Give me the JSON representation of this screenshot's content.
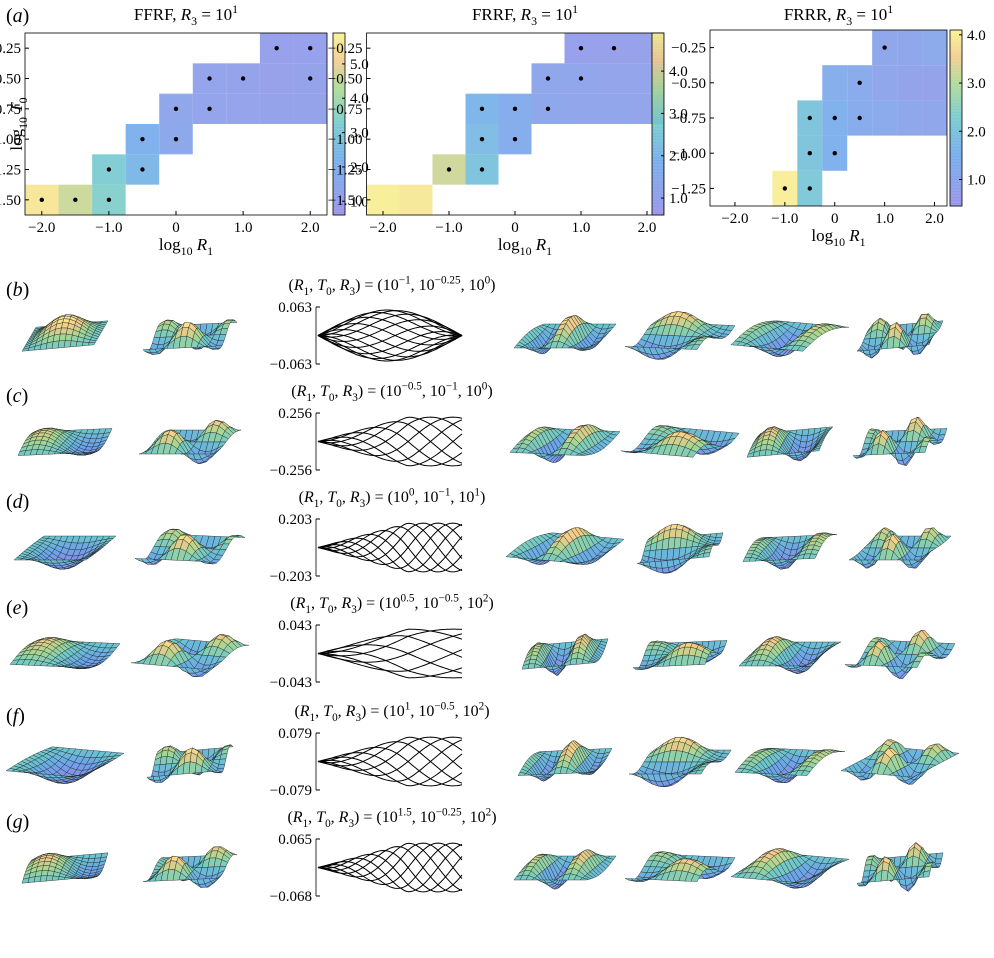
{
  "panel_a": {
    "label": [
      [
        "(",
        "n"
      ],
      [
        "a",
        "i"
      ],
      [
        ")",
        "n"
      ]
    ],
    "charts": [
      {
        "type": "heatmap",
        "title": [
          [
            "FFRF, ",
            "n"
          ],
          [
            "R",
            "i"
          ],
          [
            "3",
            "sub"
          ],
          [
            " = 10",
            "n"
          ],
          [
            "1",
            "sup"
          ]
        ],
        "xlabel": [
          [
            "log",
            "n"
          ],
          [
            "10",
            "sub"
          ],
          [
            " ",
            "n"
          ],
          [
            "R",
            "i"
          ],
          [
            "1",
            "sub"
          ]
        ],
        "ylabel": [
          [
            "log",
            "n"
          ],
          [
            "10",
            "sub"
          ],
          [
            " ",
            "n"
          ],
          [
            "T",
            "i"
          ],
          [
            "0",
            "sub"
          ]
        ],
        "xlim": [
          -2.25,
          2.25
        ],
        "ylim": [
          -1.625,
          -0.125
        ],
        "xticks": [
          {
            "value": -2,
            "label": "−2.0"
          },
          {
            "value": -1,
            "label": "−1.0"
          },
          0,
          {
            "value": 1,
            "label": "1.0"
          },
          {
            "value": 2,
            "label": "2.0"
          }
        ],
        "yticks": [
          {
            "value": -1.5,
            "label": "−1.50"
          },
          {
            "value": -1.25,
            "label": "−1.25"
          },
          {
            "value": -1,
            "label": "−1.00"
          },
          {
            "value": -0.75,
            "label": "−0.75"
          },
          {
            "value": -0.5,
            "label": "−0.50"
          },
          {
            "value": -0.25,
            "label": "−0.25"
          }
        ],
        "clim": [
          0.6,
          5.9
        ],
        "cticks": [
          {
            "value": 1,
            "label": "1.0"
          },
          {
            "value": 2,
            "label": "2.0"
          },
          {
            "value": 3,
            "label": "3.0"
          },
          {
            "value": 4,
            "label": "4.0"
          },
          {
            "value": 5,
            "label": "5.0"
          }
        ],
        "cells": {
          "x": [
            -2,
            -1.5,
            -1,
            -1,
            -0.5,
            -0.5,
            0,
            0,
            0.5,
            1,
            1.5,
            2,
            0.5,
            1,
            1.5,
            2,
            1.5,
            2
          ],
          "y": [
            -1.5,
            -1.5,
            -1.5,
            -1.25,
            -1.25,
            -1,
            -1,
            -0.75,
            -0.75,
            -0.75,
            -0.75,
            -0.75,
            -0.5,
            -0.5,
            -0.5,
            -0.5,
            -0.25,
            -0.25
          ],
          "values": [
            5.6,
            4.6,
            3.4,
            3.2,
            2.4,
            2.1,
            1.5,
            1.4,
            1.2,
            1.15,
            1.1,
            1.1,
            1.2,
            1.1,
            1.05,
            1.1,
            1.0,
            1.0
          ],
          "marked": [
            true,
            true,
            true,
            true,
            true,
            true,
            true,
            true,
            true,
            false,
            false,
            false,
            true,
            true,
            false,
            true,
            true,
            true
          ]
        }
      },
      {
        "type": "heatmap",
        "title": [
          [
            "FRRF, ",
            "n"
          ],
          [
            "R",
            "i"
          ],
          [
            "3",
            "sub"
          ],
          [
            " = 10",
            "n"
          ],
          [
            "1",
            "sup"
          ]
        ],
        "xlabel": [
          [
            "log",
            "n"
          ],
          [
            "10",
            "sub"
          ],
          [
            " ",
            "n"
          ],
          [
            "R",
            "i"
          ],
          [
            "1",
            "sub"
          ]
        ],
        "xlim": [
          -2.25,
          2.25
        ],
        "ylim": [
          -1.625,
          -0.125
        ],
        "xticks": [
          {
            "value": -2,
            "label": "−2.0"
          },
          {
            "value": -1,
            "label": "−1.0"
          },
          0,
          {
            "value": 1,
            "label": "1.0"
          },
          {
            "value": 2,
            "label": "2.0"
          }
        ],
        "yticks": [
          {
            "value": -1.5,
            "label": "−1.50"
          },
          {
            "value": -1.25,
            "label": "−1.25"
          },
          {
            "value": -1,
            "label": "−1.00"
          },
          {
            "value": -0.75,
            "label": "−0.75"
          },
          {
            "value": -0.5,
            "label": "−0.50"
          },
          {
            "value": -0.25,
            "label": "−0.25"
          }
        ],
        "clim": [
          0.6,
          4.9
        ],
        "cticks": [
          {
            "value": 1,
            "label": "1.0"
          },
          {
            "value": 2,
            "label": "2.0"
          },
          {
            "value": 3,
            "label": "3.0"
          },
          {
            "value": 4,
            "label": "4.0"
          }
        ],
        "cells": {
          "x": [
            -2,
            -1.5,
            -1,
            -0.5,
            -0.5,
            0,
            -0.5,
            0,
            0.5,
            1,
            1.5,
            2,
            0.5,
            1,
            1.5,
            2,
            1,
            1.5,
            2
          ],
          "y": [
            -1.5,
            -1.5,
            -1.25,
            -1.25,
            -1,
            -1,
            -0.75,
            -0.75,
            -0.75,
            -0.75,
            -0.75,
            -0.75,
            -0.5,
            -0.5,
            -0.5,
            -0.5,
            -0.25,
            -0.25,
            -0.25
          ],
          "values": [
            4.8,
            4.7,
            3.9,
            2.4,
            2.2,
            1.6,
            2.0,
            1.6,
            1.3,
            1.2,
            1.15,
            1.1,
            1.25,
            1.15,
            1.1,
            1.1,
            0.9,
            0.95,
            1.0
          ],
          "marked": [
            false,
            false,
            true,
            true,
            true,
            true,
            true,
            true,
            true,
            false,
            false,
            false,
            true,
            true,
            false,
            false,
            true,
            true,
            false
          ]
        }
      },
      {
        "type": "heatmap",
        "title": [
          [
            "FRRR, ",
            "n"
          ],
          [
            "R",
            "i"
          ],
          [
            "3",
            "sub"
          ],
          [
            " = 10",
            "n"
          ],
          [
            "1",
            "sup"
          ]
        ],
        "xlabel": [
          [
            "log",
            "n"
          ],
          [
            "10",
            "sub"
          ],
          [
            " ",
            "n"
          ],
          [
            "R",
            "i"
          ],
          [
            "1",
            "sub"
          ]
        ],
        "xlim": [
          -2.5,
          2.25
        ],
        "ylim": [
          -1.375,
          -0.125
        ],
        "xticks": [
          {
            "value": -2,
            "label": "−2.0"
          },
          {
            "value": -1,
            "label": "−1.0"
          },
          0,
          {
            "value": 1,
            "label": "1.0"
          },
          {
            "value": 2,
            "label": "2.0"
          }
        ],
        "yticks": [
          {
            "value": -1.25,
            "label": "−1.25"
          },
          {
            "value": -1,
            "label": "−1.00"
          },
          {
            "value": -0.75,
            "label": "−0.75"
          },
          {
            "value": -0.5,
            "label": "−0.50"
          },
          {
            "value": -0.25,
            "label": "−0.25"
          }
        ],
        "clim": [
          0.45,
          4.1
        ],
        "cticks": [
          {
            "value": 1,
            "label": "1.0"
          },
          {
            "value": 2,
            "label": "2.0"
          },
          {
            "value": 3,
            "label": "3.0"
          },
          {
            "value": 4,
            "label": "4.0"
          }
        ],
        "cells": {
          "x": [
            -1,
            -0.5,
            -0.5,
            0,
            -0.5,
            0,
            0.5,
            1,
            1.5,
            2,
            0,
            0.5,
            1,
            1.5,
            2,
            1,
            1.5,
            2
          ],
          "y": [
            -1.25,
            -1.25,
            -1,
            -1,
            -0.75,
            -0.75,
            -0.75,
            -0.75,
            -0.75,
            -0.75,
            -0.5,
            -0.5,
            -0.5,
            -0.5,
            -0.5,
            -0.25,
            -0.25,
            -0.25
          ],
          "values": [
            4.0,
            2.1,
            2.0,
            1.5,
            2.0,
            1.5,
            1.25,
            1.15,
            1.05,
            1.0,
            1.35,
            1.2,
            1.0,
            0.85,
            0.8,
            1.0,
            1.05,
            1.1
          ],
          "marked": [
            true,
            true,
            true,
            true,
            true,
            true,
            true,
            false,
            false,
            false,
            false,
            true,
            false,
            false,
            false,
            true,
            false,
            false
          ]
        }
      }
    ]
  },
  "rows": [
    {
      "label": [
        [
          "(",
          "n"
        ],
        [
          "b",
          "i"
        ],
        [
          ")",
          "n"
        ]
      ],
      "title": [
        [
          "(",
          "n"
        ],
        [
          "R",
          "i"
        ],
        [
          "1",
          "sub"
        ],
        [
          ", ",
          "n"
        ],
        [
          "T",
          "i"
        ],
        [
          "0",
          "sub"
        ],
        [
          ", ",
          "n"
        ],
        [
          "R",
          "i"
        ],
        [
          "3",
          "sub"
        ],
        [
          ") = (10",
          "n"
        ],
        [
          "−1",
          "sup"
        ],
        [
          ", 10",
          "n"
        ],
        [
          "−0.25",
          "sup"
        ],
        [
          ", 10",
          "n"
        ],
        [
          "0",
          "sup"
        ],
        [
          ")",
          "n"
        ]
      ],
      "ylim": [
        -0.063,
        0.063
      ],
      "yticks": [
        0.063,
        {
          "value": -0.063,
          "label": "−0.063"
        }
      ]
    },
    {
      "label": [
        [
          "(",
          "n"
        ],
        [
          "c",
          "i"
        ],
        [
          ")",
          "n"
        ]
      ],
      "title": [
        [
          "(",
          "n"
        ],
        [
          "R",
          "i"
        ],
        [
          "1",
          "sub"
        ],
        [
          ", ",
          "n"
        ],
        [
          "T",
          "i"
        ],
        [
          "0",
          "sub"
        ],
        [
          ", ",
          "n"
        ],
        [
          "R",
          "i"
        ],
        [
          "3",
          "sub"
        ],
        [
          ") = (10",
          "n"
        ],
        [
          "−0.5",
          "sup"
        ],
        [
          ", 10",
          "n"
        ],
        [
          "−1",
          "sup"
        ],
        [
          ", 10",
          "n"
        ],
        [
          "0",
          "sup"
        ],
        [
          ")",
          "n"
        ]
      ],
      "ylim": [
        -0.256,
        0.256
      ],
      "yticks": [
        0.256,
        {
          "value": -0.256,
          "label": "−0.256"
        }
      ]
    },
    {
      "label": [
        [
          "(",
          "n"
        ],
        [
          "d",
          "i"
        ],
        [
          ")",
          "n"
        ]
      ],
      "title": [
        [
          "(",
          "n"
        ],
        [
          "R",
          "i"
        ],
        [
          "1",
          "sub"
        ],
        [
          ", ",
          "n"
        ],
        [
          "T",
          "i"
        ],
        [
          "0",
          "sub"
        ],
        [
          ", ",
          "n"
        ],
        [
          "R",
          "i"
        ],
        [
          "3",
          "sub"
        ],
        [
          ") = (10",
          "n"
        ],
        [
          "0",
          "sup"
        ],
        [
          ", 10",
          "n"
        ],
        [
          "−1",
          "sup"
        ],
        [
          ", 10",
          "n"
        ],
        [
          "1",
          "sup"
        ],
        [
          ")",
          "n"
        ]
      ],
      "ylim": [
        -0.203,
        0.203
      ],
      "yticks": [
        0.203,
        {
          "value": -0.203,
          "label": "−0.203"
        }
      ]
    },
    {
      "label": [
        [
          "(",
          "n"
        ],
        [
          "e",
          "i"
        ],
        [
          ")",
          "n"
        ]
      ],
      "title": [
        [
          "(",
          "n"
        ],
        [
          "R",
          "i"
        ],
        [
          "1",
          "sub"
        ],
        [
          ", ",
          "n"
        ],
        [
          "T",
          "i"
        ],
        [
          "0",
          "sub"
        ],
        [
          ", ",
          "n"
        ],
        [
          "R",
          "i"
        ],
        [
          "3",
          "sub"
        ],
        [
          ") = (10",
          "n"
        ],
        [
          "0.5",
          "sup"
        ],
        [
          ", 10",
          "n"
        ],
        [
          "−0.5",
          "sup"
        ],
        [
          ", 10",
          "n"
        ],
        [
          "2",
          "sup"
        ],
        [
          ")",
          "n"
        ]
      ],
      "ylim": [
        -0.043,
        0.043
      ],
      "yticks": [
        0.043,
        {
          "value": -0.043,
          "label": "−0.043"
        }
      ]
    },
    {
      "label": [
        [
          "(",
          "n"
        ],
        [
          "f",
          "i"
        ],
        [
          ")",
          "n"
        ]
      ],
      "title": [
        [
          "(",
          "n"
        ],
        [
          "R",
          "i"
        ],
        [
          "1",
          "sub"
        ],
        [
          ", ",
          "n"
        ],
        [
          "T",
          "i"
        ],
        [
          "0",
          "sub"
        ],
        [
          ", ",
          "n"
        ],
        [
          "R",
          "i"
        ],
        [
          "3",
          "sub"
        ],
        [
          ") = (10",
          "n"
        ],
        [
          "1",
          "sup"
        ],
        [
          ", 10",
          "n"
        ],
        [
          "−0.5",
          "sup"
        ],
        [
          ", 10",
          "n"
        ],
        [
          "2",
          "sup"
        ],
        [
          ")",
          "n"
        ]
      ],
      "ylim": [
        -0.079,
        0.079
      ],
      "yticks": [
        0.079,
        {
          "value": -0.079,
          "label": "−0.079"
        }
      ]
    },
    {
      "label": [
        [
          "(",
          "n"
        ],
        [
          "g",
          "i"
        ],
        [
          ")",
          "n"
        ]
      ],
      "title": [
        [
          "(",
          "n"
        ],
        [
          "R",
          "i"
        ],
        [
          "1",
          "sub"
        ],
        [
          ", ",
          "n"
        ],
        [
          "T",
          "i"
        ],
        [
          "0",
          "sub"
        ],
        [
          ", ",
          "n"
        ],
        [
          "R",
          "i"
        ],
        [
          "3",
          "sub"
        ],
        [
          ") = (10",
          "n"
        ],
        [
          "1.5",
          "sup"
        ],
        [
          ", 10",
          "n"
        ],
        [
          "−0.25",
          "sup"
        ],
        [
          ", 10",
          "n"
        ],
        [
          "2",
          "sup"
        ],
        [
          ")",
          "n"
        ]
      ],
      "ylim": [
        -0.068,
        0.065
      ],
      "yticks": [
        0.065,
        {
          "value": -0.068,
          "label": "−0.068"
        }
      ]
    }
  ]
}
